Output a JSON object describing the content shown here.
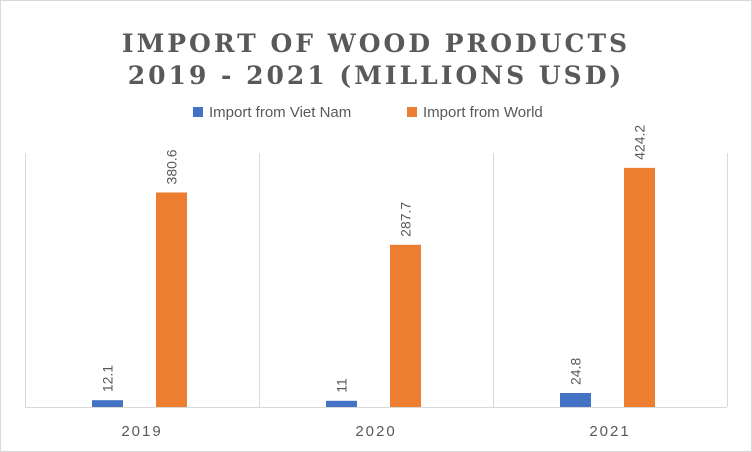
{
  "chart_data": {
    "type": "bar",
    "title_line1": "IMPORT OF WOOD PRODUCTS",
    "title_line2": "2019 - 2021 (MILLIONS USD)",
    "categories": [
      "2019",
      "2020",
      "2021"
    ],
    "series": [
      {
        "name": "Import from Viet Nam",
        "values": [
          12.1,
          11,
          24.8
        ],
        "color": "#4472c4"
      },
      {
        "name": "Import from World",
        "values": [
          380.6,
          287.7,
          424.2
        ],
        "color": "#ed7d31"
      }
    ],
    "ylim": [
      0,
      450
    ],
    "grid": "vertical category separators",
    "legend_position": "top",
    "data_labels": "rotated, above bars"
  }
}
